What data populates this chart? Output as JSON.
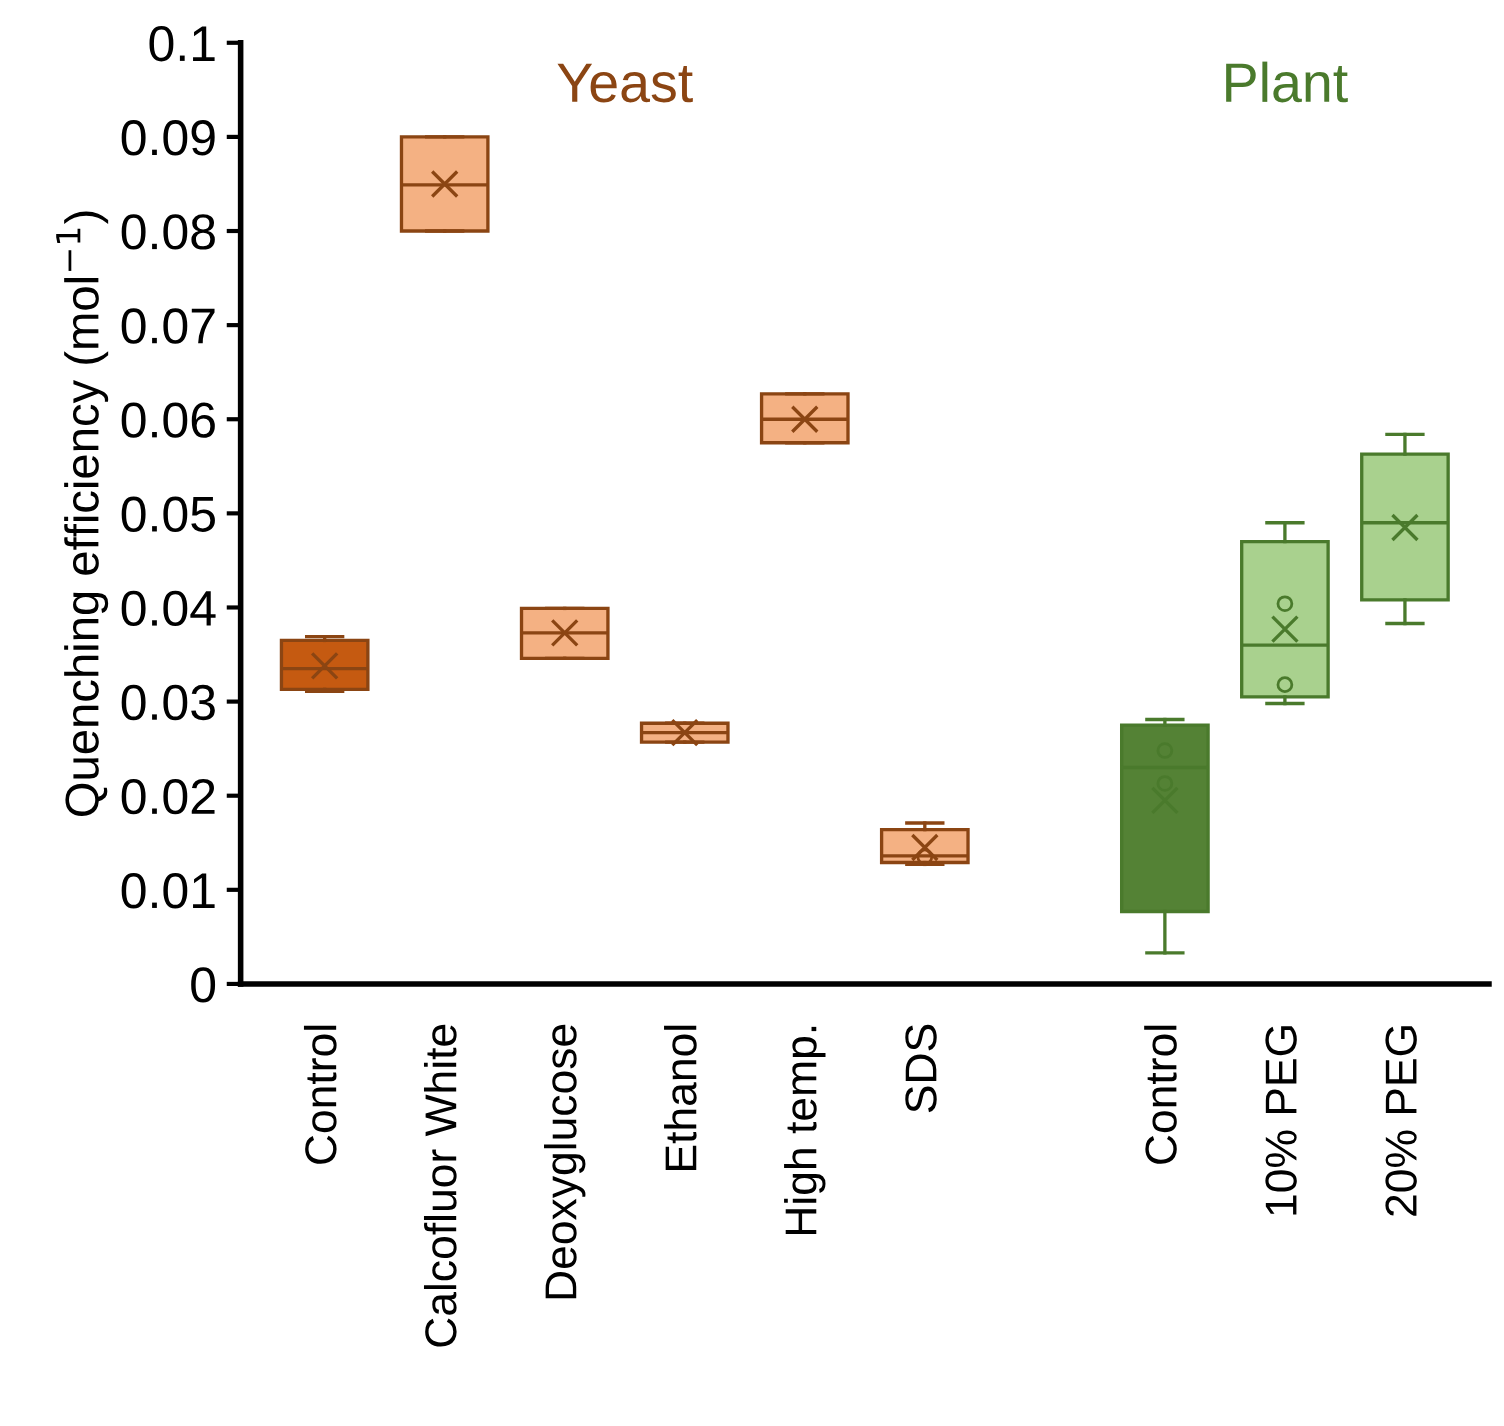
{
  "chart_data": {
    "type": "box",
    "ylabel": "Quenching efficiency (mol$^{−1}$)",
    "categories": [
      "Control",
      "Calcofluor White",
      "Deoxyglucose",
      "Ethanol",
      "High temp.",
      "SDS",
      null,
      "Control",
      "10% PEG",
      "20% PEG"
    ],
    "ylim": [
      0,
      0.1
    ],
    "yticks": [
      0,
      0.01,
      0.02,
      0.03,
      0.04,
      0.05,
      0.06,
      0.07,
      0.08,
      0.09,
      0.1
    ],
    "series": [
      {
        "name": "Yeast",
        "color": "#8b4513",
        "colors": [
          "#c55a11",
          "#f4b183",
          "#f4b183",
          "#f4b183",
          "#f4b183",
          "#f4b183",
          null,
          null,
          null,
          null
        ],
        "boxes": [
          {
            "low": 0.0311,
            "q1": 0.0313,
            "median": 0.0335,
            "q3": 0.0365,
            "high": 0.0369,
            "mean": 0.0338
          },
          {
            "low": 0.08,
            "q1": 0.08,
            "median": 0.0849,
            "q3": 0.09,
            "high": 0.09,
            "mean": 0.085
          },
          {
            "low": 0.0346,
            "q1": 0.0346,
            "median": 0.0373,
            "q3": 0.0399,
            "high": 0.0399,
            "mean": 0.0373
          },
          {
            "low": 0.0257,
            "q1": 0.0257,
            "median": 0.0267,
            "q3": 0.0277,
            "high": 0.0277,
            "mean": 0.0267
          },
          {
            "low": 0.0575,
            "q1": 0.0575,
            "median": 0.06,
            "q3": 0.0627,
            "high": 0.0627,
            "mean": 0.06
          },
          {
            "low": 0.0127,
            "q1": 0.0129,
            "median": 0.0136,
            "q3": 0.0164,
            "high": 0.0171,
            "mean": 0.0145,
            "outliers": [
              0.0135
            ]
          },
          null,
          null,
          null,
          null
        ]
      },
      {
        "name": "Plant",
        "color": "#4a7a2c",
        "colors": [
          null,
          null,
          null,
          null,
          null,
          null,
          null,
          "#548235",
          "#a9d18e",
          "#a9d18e"
        ],
        "boxes": [
          null,
          null,
          null,
          null,
          null,
          null,
          null,
          {
            "low": 0.0033,
            "q1": 0.0077,
            "median": 0.023,
            "q3": 0.0275,
            "high": 0.0281,
            "mean": 0.0195,
            "outliers": [
              0.0248,
              0.0213
            ]
          },
          {
            "low": 0.0298,
            "q1": 0.0305,
            "median": 0.036,
            "q3": 0.047,
            "high": 0.049,
            "mean": 0.0377,
            "outliers": [
              0.0404,
              0.0318
            ]
          },
          {
            "low": 0.0383,
            "q1": 0.0408,
            "median": 0.049,
            "q3": 0.0563,
            "high": 0.0584,
            "mean": 0.0485
          }
        ]
      }
    ]
  }
}
